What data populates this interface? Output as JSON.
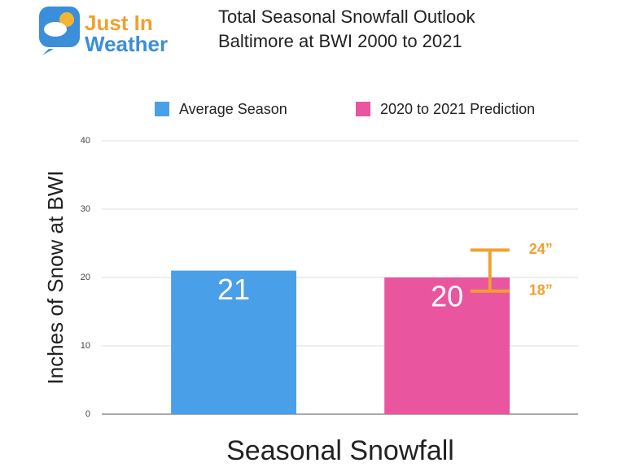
{
  "chart_data": {
    "type": "bar",
    "title": [
      "Total Seasonal Snowfall Outlook",
      "Baltimore at BWI 2000 to 2021"
    ],
    "logo": [
      "Just In",
      "Weather"
    ],
    "ylabel": "Inches of Snow at BWI",
    "xlabel": "Seasonal Snowfall",
    "categories": [
      null
    ],
    "series": [
      {
        "name": "Average Season",
        "color": "#4a9fe9",
        "values": [
          21
        ]
      },
      {
        "name": "2020 to 2021 Prediction",
        "color": "#e9559e",
        "values": [
          20
        ],
        "range": [
          18,
          24
        ],
        "range_labels": [
          "18”",
          "24”"
        ],
        "range_color": "#f0a030"
      }
    ],
    "ylim": [
      0,
      40
    ],
    "yticks": [
      0,
      10,
      20,
      30,
      40
    ],
    "grid": true
  }
}
